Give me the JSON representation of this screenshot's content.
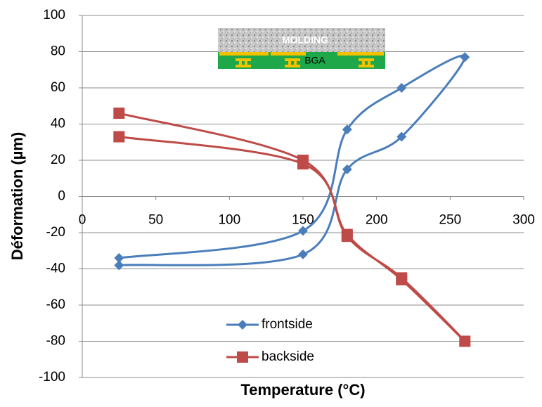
{
  "chart_data": {
    "type": "scatter",
    "smooth": true,
    "x_label": "Temperature (°C)",
    "y_label": "Déformation (µm)",
    "xlim": [
      0,
      300
    ],
    "xticks": [
      0,
      50,
      100,
      150,
      200,
      250,
      300
    ],
    "ylim": [
      -100,
      100
    ],
    "yticks": [
      -100,
      -80,
      -60,
      -40,
      -20,
      0,
      20,
      40,
      60,
      80,
      100
    ],
    "grid": true,
    "legend": "lower center",
    "inset": {
      "top_label": "MOLDING",
      "bottom_label": "BGA"
    },
    "series": [
      {
        "name": "frontside",
        "color": "#4a7ebb",
        "marker": "diamond",
        "x": [
          25,
          150,
          180,
          217,
          260,
          217,
          180,
          150,
          25
        ],
        "values": [
          -34,
          -19,
          37,
          60,
          77,
          33,
          15,
          -32,
          -38
        ]
      },
      {
        "name": "backside",
        "color": "#be4b48",
        "marker": "square",
        "x": [
          25,
          150,
          180,
          217,
          260,
          217,
          180,
          150,
          25
        ],
        "values": [
          46,
          20,
          -22,
          -45,
          -80,
          -46,
          -21,
          18,
          33
        ]
      }
    ]
  }
}
